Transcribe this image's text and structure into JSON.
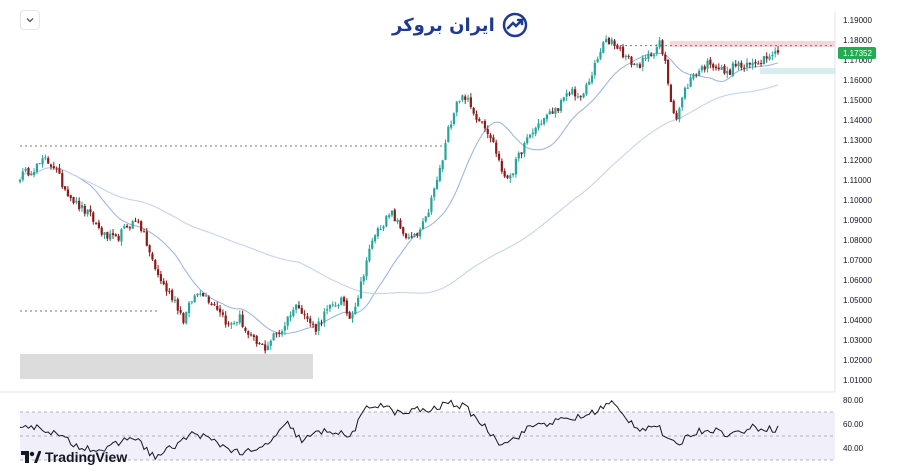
{
  "brand": {
    "name": "ایران بروکر",
    "accent": "#1f3a93"
  },
  "footer": {
    "platform": "TradingView"
  },
  "colors": {
    "up": "#26a69a",
    "down": "#8b1a1a",
    "ma_fast": "#9fb7e0",
    "ma_slow": "#c6d3ea",
    "price_tag": "#22ab50",
    "rsi_line": "#131722",
    "rsi_band": "#f1effa",
    "demand_zone": "#dcdcdc",
    "resistance_zone": "#f7d6da",
    "support_zone": "#d7eef0"
  },
  "icons": {
    "collapse": "chevron-down-icon"
  },
  "chart_data": [
    {
      "type": "candlestick",
      "y_axis": {
        "ylim": [
          1.0,
          1.195
        ],
        "position": "right",
        "ticks": [
          "1.19000",
          "1.18000",
          "1.17000",
          "1.16000",
          "1.15000",
          "1.14000",
          "1.13000",
          "1.12000",
          "1.11000",
          "1.10000",
          "1.09000",
          "1.08000",
          "1.07000",
          "1.06000",
          "1.05000",
          "1.04000",
          "1.03000",
          "1.02000",
          "1.01000"
        ]
      },
      "last_price": "1.17352",
      "grid": false,
      "annotations": {
        "dotted_levels": [
          1.1772,
          1.127,
          1.0445
        ],
        "zones": [
          {
            "name": "demand",
            "y": [
              1.0105,
              1.023
            ]
          },
          {
            "name": "resistance",
            "y": [
              1.1765,
              1.1795
            ]
          },
          {
            "name": "support",
            "y": [
              1.163,
              1.166
            ]
          }
        ]
      },
      "anchors": [
        [
          0,
          1.112
        ],
        [
          5,
          1.116
        ],
        [
          9,
          1.12
        ],
        [
          12,
          1.117
        ],
        [
          15,
          1.108
        ],
        [
          20,
          1.098
        ],
        [
          25,
          1.092
        ],
        [
          30,
          1.082
        ],
        [
          34,
          1.08
        ],
        [
          38,
          1.087
        ],
        [
          42,
          1.09
        ],
        [
          45,
          1.078
        ],
        [
          48,
          1.065
        ],
        [
          52,
          1.055
        ],
        [
          55,
          1.05
        ],
        [
          58,
          1.04
        ],
        [
          61,
          1.05
        ],
        [
          64,
          1.055
        ],
        [
          68,
          1.049
        ],
        [
          71,
          1.045
        ],
        [
          74,
          1.037
        ],
        [
          78,
          1.041
        ],
        [
          81,
          1.032
        ],
        [
          84,
          1.028
        ],
        [
          87,
          1.026
        ],
        [
          90,
          1.032
        ],
        [
          93,
          1.035
        ],
        [
          96,
          1.044
        ],
        [
          99,
          1.048
        ],
        [
          102,
          1.04
        ],
        [
          105,
          1.036
        ],
        [
          108,
          1.043
        ],
        [
          111,
          1.047
        ],
        [
          114,
          1.05
        ],
        [
          117,
          1.041
        ],
        [
          120,
          1.052
        ],
        [
          123,
          1.07
        ],
        [
          126,
          1.083
        ],
        [
          129,
          1.089
        ],
        [
          132,
          1.093
        ],
        [
          135,
          1.086
        ],
        [
          138,
          1.08
        ],
        [
          141,
          1.082
        ],
        [
          144,
          1.09
        ],
        [
          147,
          1.105
        ],
        [
          150,
          1.12
        ],
        [
          152,
          1.135
        ],
        [
          155,
          1.15
        ],
        [
          158,
          1.152
        ],
        [
          161,
          1.143
        ],
        [
          164,
          1.14
        ],
        [
          167,
          1.132
        ],
        [
          170,
          1.12
        ],
        [
          172,
          1.11
        ],
        [
          175,
          1.115
        ],
        [
          178,
          1.125
        ],
        [
          181,
          1.132
        ],
        [
          184,
          1.138
        ],
        [
          187,
          1.142
        ],
        [
          190,
          1.145
        ],
        [
          193,
          1.15
        ],
        [
          196,
          1.155
        ],
        [
          199,
          1.15
        ],
        [
          202,
          1.16
        ],
        [
          205,
          1.17
        ],
        [
          207,
          1.178
        ],
        [
          210,
          1.18
        ],
        [
          213,
          1.175
        ],
        [
          216,
          1.17
        ],
        [
          219,
          1.167
        ],
        [
          222,
          1.17
        ],
        [
          225,
          1.175
        ],
        [
          227,
          1.178
        ],
        [
          229,
          1.168
        ],
        [
          231,
          1.15
        ],
        [
          233,
          1.141
        ],
        [
          236,
          1.155
        ],
        [
          239,
          1.163
        ],
        [
          242,
          1.166
        ],
        [
          245,
          1.169
        ],
        [
          248,
          1.166
        ],
        [
          251,
          1.163
        ],
        [
          254,
          1.168
        ],
        [
          257,
          1.166
        ],
        [
          260,
          1.168
        ],
        [
          263,
          1.17
        ],
        [
          266,
          1.174
        ],
        [
          268,
          1.1735
        ]
      ],
      "moving_averages": [
        {
          "period": 20,
          "style": "fast"
        },
        {
          "period": 100,
          "style": "slow"
        }
      ]
    },
    {
      "type": "line",
      "name": "RSI",
      "y_axis": {
        "ylim": [
          30,
          85
        ],
        "ticks": [
          "80.00",
          "60.00",
          "40.00"
        ]
      },
      "levels": [
        70,
        50,
        30
      ],
      "anchors": [
        [
          0,
          60
        ],
        [
          10,
          55
        ],
        [
          20,
          42
        ],
        [
          30,
          38
        ],
        [
          40,
          50
        ],
        [
          48,
          32
        ],
        [
          55,
          42
        ],
        [
          62,
          53
        ],
        [
          70,
          44
        ],
        [
          78,
          36
        ],
        [
          84,
          37
        ],
        [
          90,
          48
        ],
        [
          95,
          60
        ],
        [
          100,
          46
        ],
        [
          105,
          52
        ],
        [
          110,
          55
        ],
        [
          117,
          49
        ],
        [
          123,
          73
        ],
        [
          128,
          77
        ],
        [
          132,
          71
        ],
        [
          136,
          68
        ],
        [
          140,
          72
        ],
        [
          146,
          71
        ],
        [
          152,
          78
        ],
        [
          158,
          74
        ],
        [
          164,
          60
        ],
        [
          170,
          45
        ],
        [
          175,
          47
        ],
        [
          182,
          59
        ],
        [
          188,
          61
        ],
        [
          194,
          64
        ],
        [
          200,
          66
        ],
        [
          206,
          73
        ],
        [
          210,
          78
        ],
        [
          214,
          67
        ],
        [
          220,
          56
        ],
        [
          226,
          59
        ],
        [
          230,
          46
        ],
        [
          233,
          42
        ],
        [
          238,
          52
        ],
        [
          245,
          56
        ],
        [
          252,
          51
        ],
        [
          260,
          57
        ],
        [
          268,
          56
        ]
      ]
    }
  ]
}
